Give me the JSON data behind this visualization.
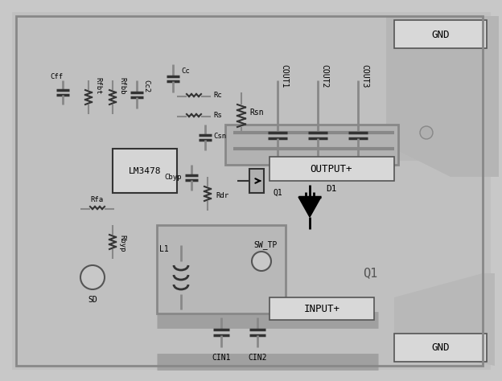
{
  "bg_color": "#c8c8c8",
  "pcb_color": "#b8b8b8",
  "trace_color": "#a0a0a0",
  "dark_trace": "#888888",
  "component_color": "#909090",
  "text_color": "#000000",
  "box_color": "#d0d0d0",
  "figsize": [
    6.24,
    4.74
  ],
  "dpi": 100,
  "labels": {
    "GND_top": "GND",
    "GND_bottom": "GND",
    "OUTPUT": "OUTPUT+",
    "INPUT": "INPUT+",
    "LM3478": "LM3478",
    "Q1_label": "Q1",
    "D1_label": "D1",
    "SW_TP": "SW_TP",
    "SD": "SD",
    "L1": "L1",
    "CIN1": "CIN1",
    "CIN2": "CIN2",
    "COUT1": "COUT1",
    "COUT2": "COUT2",
    "COUT3": "COUT3",
    "Cff": "Cff",
    "Rfbt": "Rfbt",
    "Rfbb": "Rfbb",
    "Cc2": "Cc2",
    "Cc": "Cc",
    "Rc": "Rc",
    "Rs": "Rs",
    "Csn": "Csn",
    "Cbyp": "Cbyp",
    "Rdr": "Rdr",
    "Rfa": "Rfa",
    "Rbyp": "Rbyp",
    "Rsn": "Rsn",
    "Q1_mosfet": "Q1"
  }
}
